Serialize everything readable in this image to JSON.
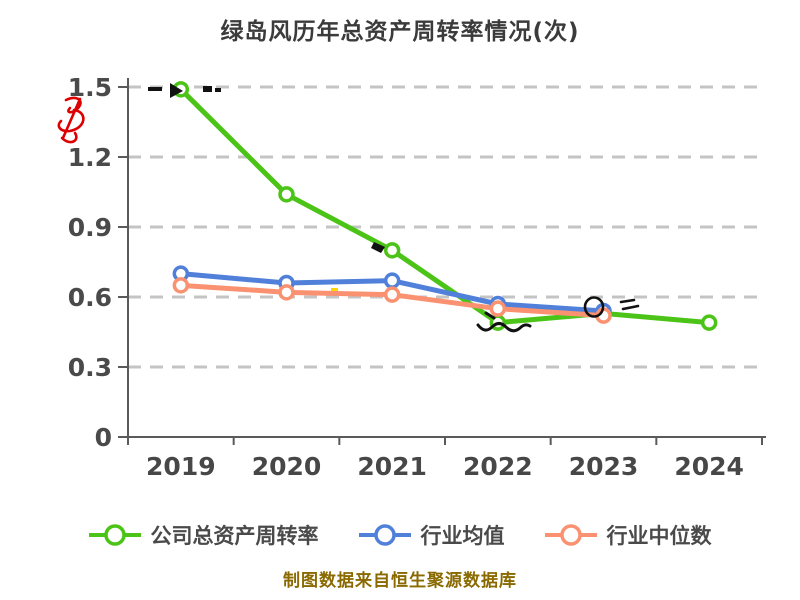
{
  "title": "绿岛风历年总资产周转率情况(次)",
  "source_note": "制图数据来自恒生聚源数据库",
  "colors": {
    "company_line": "#4cc417",
    "industry_mean_line": "#5080d9",
    "industry_median_line": "#fa9272",
    "grid": "#c4c4c4",
    "axis": "#5a5a5a",
    "title_text": "#3b3b3b",
    "source_text": "#8a6a00",
    "annotation_red": "#dd0000",
    "annotation_black": "#111111"
  },
  "chart_data": {
    "type": "line",
    "title": "绿岛风历年总资产周转率情况(次)",
    "categories": [
      "2019",
      "2020",
      "2021",
      "2022",
      "2023",
      "2024"
    ],
    "series": [
      {
        "name": "公司总资产周转率",
        "color": "#4cc417",
        "values": [
          1.49,
          1.04,
          0.8,
          0.49,
          0.53,
          0.49
        ]
      },
      {
        "name": "行业均值",
        "color": "#5080d9",
        "values": [
          0.7,
          0.66,
          0.67,
          0.57,
          0.54,
          null
        ]
      },
      {
        "name": "行业中位数",
        "color": "#fa9272",
        "values": [
          0.65,
          0.62,
          0.61,
          0.55,
          0.52,
          null
        ]
      }
    ],
    "xlabel": "",
    "ylabel": "",
    "ylim": [
      0,
      1.5
    ],
    "yticks": [
      0,
      0.3,
      0.6,
      0.9,
      1.2,
      1.5
    ],
    "grid": "horizontal-dashed",
    "legend_position": "bottom",
    "marker": "open-circle"
  }
}
